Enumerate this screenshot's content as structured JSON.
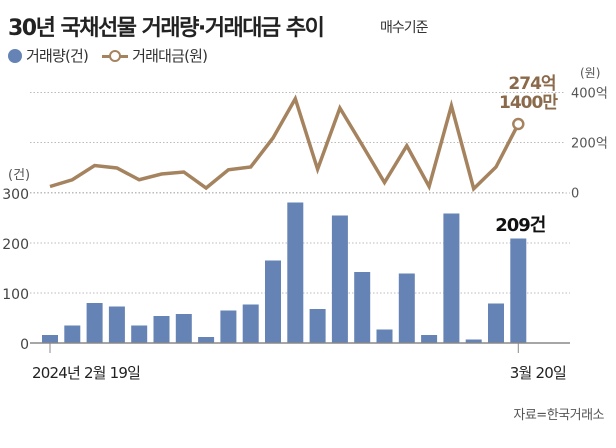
{
  "header": {
    "title": "30년 국채선물 거래량·거래대금 추이",
    "subtitle": "매수기준"
  },
  "legend": {
    "volume_label": "거래량(건)",
    "value_label": "거래대금(원)"
  },
  "source": "자료=한국거래소",
  "colors": {
    "bar": "#6583b5",
    "line": "#a5835f",
    "grid": "#bbbbbb",
    "axis": "#888888"
  },
  "chart_data": [
    {
      "type": "bar",
      "name": "거래량",
      "unit_label": "(건)",
      "ylim": [
        0,
        300
      ],
      "yticks": [
        "0",
        "100",
        "200",
        "300"
      ],
      "x_start_label": "2024년 2월 19일",
      "x_end_label": "3월 20일",
      "values": [
        16,
        35,
        80,
        73,
        35,
        54,
        58,
        12,
        65,
        77,
        165,
        281,
        68,
        255,
        142,
        27,
        139,
        16,
        259,
        7,
        79,
        209
      ],
      "annotation": "209건"
    },
    {
      "type": "line",
      "name": "거래대금",
      "unit_label": "(원)",
      "ylim": [
        0,
        400
      ],
      "yticks": [
        "0",
        "200억",
        "400억"
      ],
      "values": [
        24,
        51,
        108,
        98,
        51,
        74,
        82,
        18,
        91,
        102,
        218,
        375,
        93,
        338,
        190,
        40,
        187,
        24,
        347,
        15,
        102,
        274
      ],
      "annotation_line1": "274억",
      "annotation_line2": "1400만"
    }
  ]
}
